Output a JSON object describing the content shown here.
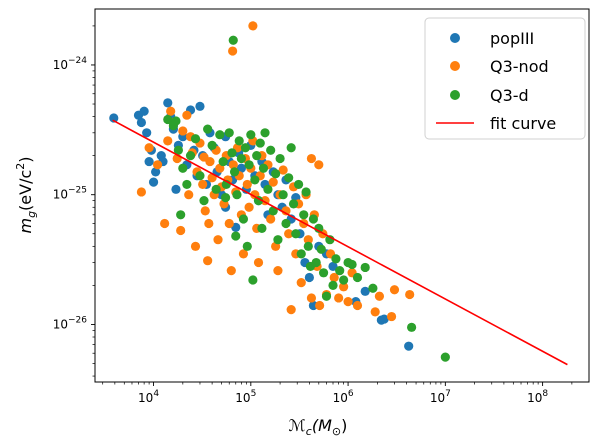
{
  "chart_data": {
    "type": "scatter",
    "xlabel_main": "ℳ",
    "xlabel_sub": "c",
    "xlabel_rest": "(M",
    "xlabel_sun": "⊙",
    "xlabel_close": ")",
    "ylabel_main": "m",
    "ylabel_sub": "g",
    "ylabel_rest": "(eV/c",
    "ylabel_sup": "2",
    "ylabel_close": ")",
    "x_scale": "log",
    "y_scale": "log",
    "xlim": [
      2500,
      300000000
    ],
    "ylim": [
      3.6e-27,
      2.7e-24
    ],
    "grid": false,
    "legend_placement": "top-right",
    "x_ticks": [
      {
        "base": "10",
        "exp": "4",
        "value": 10000
      },
      {
        "base": "10",
        "exp": "5",
        "value": 100000
      },
      {
        "base": "10",
        "exp": "6",
        "value": 1000000
      },
      {
        "base": "10",
        "exp": "7",
        "value": 10000000
      },
      {
        "base": "10",
        "exp": "8",
        "value": 100000000
      }
    ],
    "y_ticks": [
      {
        "base": "10",
        "exp": "−26",
        "value": 1e-26
      },
      {
        "base": "10",
        "exp": "−25",
        "value": 1e-25
      },
      {
        "base": "10",
        "exp": "−24",
        "value": 1e-24
      }
    ],
    "series": [
      {
        "name": "popIII",
        "color": "#1f77b4",
        "points": [
          [
            3900,
            3.9e-25
          ],
          [
            7000,
            4.1e-25
          ],
          [
            7500,
            3.6e-25
          ],
          [
            8000,
            4.4e-25
          ],
          [
            8500,
            3e-25
          ],
          [
            9000,
            1.8e-25
          ],
          [
            9500,
            2.2e-25
          ],
          [
            10500,
            1.5e-25
          ],
          [
            10000,
            1.25e-25
          ],
          [
            12000,
            2e-25
          ],
          [
            12500,
            1.8e-25
          ],
          [
            14000,
            5.1e-25
          ],
          [
            15000,
            4e-25
          ],
          [
            16000,
            3.2e-25
          ],
          [
            17000,
            1.1e-25
          ],
          [
            18000,
            2.4e-25
          ],
          [
            20000,
            2.8e-25
          ],
          [
            22000,
            1.7e-25
          ],
          [
            24000,
            4.5e-25
          ],
          [
            26000,
            2.2e-25
          ],
          [
            28000,
            1.4e-25
          ],
          [
            30000,
            4.8e-25
          ],
          [
            32000,
            2e-25
          ],
          [
            35000,
            1.2e-25
          ],
          [
            38000,
            3e-25
          ],
          [
            42000,
            2.3e-25
          ],
          [
            45000,
            1.5e-25
          ],
          [
            50000,
            1e-25
          ],
          [
            55000,
            2.8e-25
          ],
          [
            60000,
            1.8e-25
          ],
          [
            65000,
            1.3e-25
          ],
          [
            70000,
            5.6e-26
          ],
          [
            75000,
            2.1e-25
          ],
          [
            80000,
            1.6e-25
          ],
          [
            90000,
            1.1e-25
          ],
          [
            100000,
            2.4e-25
          ],
          [
            110000,
            1.4e-25
          ],
          [
            120000,
            9e-26
          ],
          [
            130000,
            1.8e-25
          ],
          [
            140000,
            1.2e-25
          ],
          [
            150000,
            7e-26
          ],
          [
            170000,
            1.5e-25
          ],
          [
            190000,
            1e-25
          ],
          [
            210000,
            8e-26
          ],
          [
            230000,
            1.3e-25
          ],
          [
            260000,
            6.5e-26
          ],
          [
            290000,
            9.5e-26
          ],
          [
            320000,
            5e-26
          ],
          [
            360000,
            3e-26
          ],
          [
            400000,
            2.3e-26
          ],
          [
            440000,
            1.4e-26
          ],
          [
            500000,
            4e-26
          ],
          [
            600000,
            3.5e-26
          ],
          [
            700000,
            2.8e-26
          ],
          [
            1200000,
            1.5e-26
          ],
          [
            1500000,
            1.8e-26
          ],
          [
            2200000,
            1.08e-26
          ],
          [
            2350000,
            1.1e-26
          ],
          [
            4200000,
            6.8e-27
          ],
          [
            55000,
            8e-26
          ]
        ]
      },
      {
        "name": "Q3-nod",
        "color": "#ff7f0e",
        "points": [
          [
            65000,
            1.28e-24
          ],
          [
            105000,
            2e-24
          ],
          [
            7500,
            1.05e-25
          ],
          [
            9000,
            2.3e-25
          ],
          [
            11000,
            1.7e-25
          ],
          [
            13000,
            6e-26
          ],
          [
            14000,
            2.6e-25
          ],
          [
            15000,
            4.4e-25
          ],
          [
            16000,
            3.6e-25
          ],
          [
            17500,
            1.9e-25
          ],
          [
            19000,
            5.3e-26
          ],
          [
            20000,
            3.1e-25
          ],
          [
            22000,
            4.1e-25
          ],
          [
            23000,
            1e-25
          ],
          [
            25000,
            2.1e-25
          ],
          [
            27000,
            4e-26
          ],
          [
            28000,
            1.5e-25
          ],
          [
            30000,
            2.5e-25
          ],
          [
            32000,
            1.2e-25
          ],
          [
            34000,
            7.5e-26
          ],
          [
            36000,
            3.1e-26
          ],
          [
            38000,
            1.8e-25
          ],
          [
            40000,
            1.35e-25
          ],
          [
            42000,
            1e-25
          ],
          [
            44000,
            2.2e-25
          ],
          [
            46000,
            4.5e-26
          ],
          [
            48000,
            1.6e-25
          ],
          [
            50000,
            1.15e-25
          ],
          [
            53000,
            8.5e-26
          ],
          [
            56000,
            2e-25
          ],
          [
            58000,
            1.3e-25
          ],
          [
            60000,
            6e-26
          ],
          [
            63000,
            2.6e-26
          ],
          [
            66000,
            1.7e-25
          ],
          [
            70000,
            1.05e-25
          ],
          [
            73000,
            2.3e-25
          ],
          [
            76000,
            1.4e-25
          ],
          [
            80000,
            7e-26
          ],
          [
            84000,
            3.5e-26
          ],
          [
            88000,
            1.9e-25
          ],
          [
            92000,
            1.2e-25
          ],
          [
            96000,
            8e-26
          ],
          [
            100000,
            1.6e-25
          ],
          [
            105000,
            2.6e-25
          ],
          [
            110000,
            1e-25
          ],
          [
            115000,
            5.5e-26
          ],
          [
            120000,
            3e-26
          ],
          [
            125000,
            1.4e-25
          ],
          [
            130000,
            2e-25
          ],
          [
            140000,
            9e-26
          ],
          [
            150000,
            1.7e-25
          ],
          [
            160000,
            6.5e-26
          ],
          [
            170000,
            1.25e-25
          ],
          [
            180000,
            4e-26
          ],
          [
            190000,
            2.6e-26
          ],
          [
            200000,
            1e-25
          ],
          [
            215000,
            1.55e-25
          ],
          [
            230000,
            7.5e-26
          ],
          [
            245000,
            5e-26
          ],
          [
            260000,
            1.3e-26
          ],
          [
            275000,
            1.15e-25
          ],
          [
            290000,
            3.5e-26
          ],
          [
            310000,
            8.5e-26
          ],
          [
            330000,
            2.1e-26
          ],
          [
            350000,
            6e-26
          ],
          [
            370000,
            1e-25
          ],
          [
            390000,
            4.5e-26
          ],
          [
            420000,
            1.6e-26
          ],
          [
            450000,
            7e-26
          ],
          [
            480000,
            2.8e-26
          ],
          [
            510000,
            1.4e-26
          ],
          [
            550000,
            5e-26
          ],
          [
            600000,
            1.7e-26
          ],
          [
            660000,
            3.5e-26
          ],
          [
            720000,
            2.3e-26
          ],
          [
            800000,
            1.6e-26
          ],
          [
            900000,
            1.95e-26
          ],
          [
            1000000,
            1.5e-26
          ],
          [
            1100000,
            2.5e-26
          ],
          [
            1250000,
            1.4e-26
          ],
          [
            1900000,
            1.25e-26
          ],
          [
            2100000,
            1.65e-26
          ],
          [
            2800000,
            1.15e-26
          ],
          [
            3000000,
            1.85e-26
          ],
          [
            4300000,
            1.7e-26
          ],
          [
            500000,
            1.7e-25
          ],
          [
            420000,
            1.9e-25
          ],
          [
            24000,
            2.8e-25
          ],
          [
            33000,
            1.95e-25
          ],
          [
            37000,
            6e-26
          ]
        ]
      },
      {
        "name": "Q3-d",
        "color": "#2ca02c",
        "points": [
          [
            66000,
            1.55e-24
          ],
          [
            14000,
            3.8e-25
          ],
          [
            16000,
            3.4e-25
          ],
          [
            17000,
            3.7e-25
          ],
          [
            18000,
            2.2e-25
          ],
          [
            19000,
            7e-26
          ],
          [
            20000,
            1.6e-25
          ],
          [
            22000,
            1.2e-25
          ],
          [
            24000,
            2e-25
          ],
          [
            27000,
            2.7e-25
          ],
          [
            30000,
            1.4e-25
          ],
          [
            33000,
            9e-26
          ],
          [
            36000,
            3.2e-25
          ],
          [
            40000,
            2.4e-25
          ],
          [
            44000,
            1.1e-25
          ],
          [
            48000,
            2.9e-25
          ],
          [
            52000,
            1.8e-25
          ],
          [
            56000,
            1.2e-25
          ],
          [
            60000,
            3e-25
          ],
          [
            64000,
            2.1e-25
          ],
          [
            68000,
            1.5e-25
          ],
          [
            72000,
            1e-25
          ],
          [
            76000,
            2.6e-25
          ],
          [
            80000,
            1.9e-25
          ],
          [
            84000,
            6.5e-26
          ],
          [
            88000,
            2.3e-25
          ],
          [
            92000,
            4e-26
          ],
          [
            96000,
            1.7e-25
          ],
          [
            100000,
            2.9e-25
          ],
          [
            105000,
            2.2e-26
          ],
          [
            110000,
            1.3e-25
          ],
          [
            115000,
            2e-25
          ],
          [
            120000,
            9e-26
          ],
          [
            125000,
            2.5e-25
          ],
          [
            130000,
            5.5e-26
          ],
          [
            135000,
            1.6e-25
          ],
          [
            140000,
            3e-25
          ],
          [
            150000,
            1.1e-25
          ],
          [
            160000,
            2.2e-25
          ],
          [
            170000,
            7.5e-26
          ],
          [
            180000,
            1.45e-25
          ],
          [
            190000,
            4.5e-26
          ],
          [
            200000,
            1.9e-25
          ],
          [
            215000,
            1e-25
          ],
          [
            230000,
            6e-26
          ],
          [
            245000,
            1.35e-25
          ],
          [
            260000,
            2.3e-25
          ],
          [
            275000,
            8.5e-26
          ],
          [
            290000,
            5e-26
          ],
          [
            310000,
            1.2e-25
          ],
          [
            330000,
            3.5e-26
          ],
          [
            350000,
            7e-26
          ],
          [
            370000,
            1.05e-25
          ],
          [
            390000,
            4e-26
          ],
          [
            410000,
            2.8e-26
          ],
          [
            440000,
            6.5e-26
          ],
          [
            470000,
            3e-26
          ],
          [
            500000,
            5.5e-26
          ],
          [
            530000,
            3.8e-26
          ],
          [
            560000,
            2.5e-26
          ],
          [
            600000,
            1.65e-26
          ],
          [
            650000,
            4.5e-26
          ],
          [
            700000,
            2e-26
          ],
          [
            750000,
            3.2e-26
          ],
          [
            820000,
            2.6e-26
          ],
          [
            900000,
            2.2e-26
          ],
          [
            1000000,
            3e-26
          ],
          [
            1100000,
            2.9e-26
          ],
          [
            1250000,
            2.3e-26
          ],
          [
            1500000,
            2.75e-26
          ],
          [
            1800000,
            1.9e-26
          ],
          [
            4500000,
            9.5e-27
          ],
          [
            10000000,
            5.6e-27
          ],
          [
            55000,
            9.5e-26
          ],
          [
            70000,
            4.8e-26
          ]
        ]
      }
    ],
    "fit_curve": {
      "name": "fit curve",
      "color": "#ff0000",
      "points": [
        [
          3800,
          3.75e-25
        ],
        [
          180000000,
          4.9e-27
        ]
      ]
    }
  }
}
